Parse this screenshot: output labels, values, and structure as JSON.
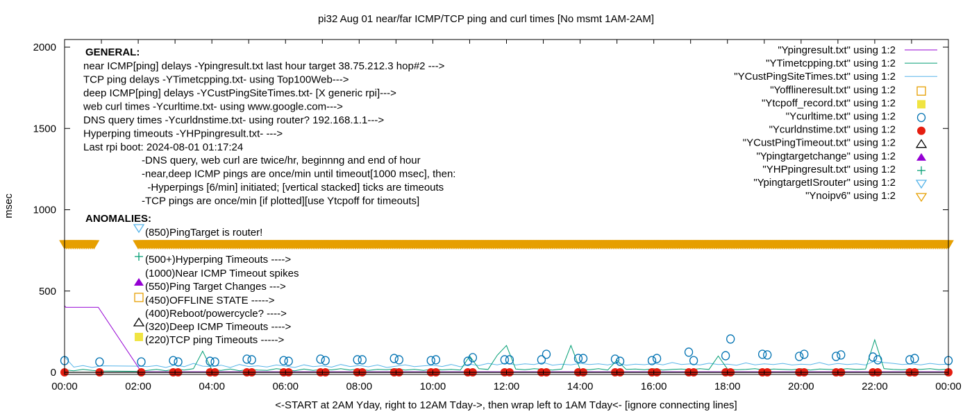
{
  "chart_data": {
    "type": "line",
    "title": "pi32 Aug 01  near/far ICMP/TCP ping and curl times [No msmt 1AM-2AM]",
    "xlabel": "<-START at 2AM Yday, right to 12AM Tday->, then wrap left to 1AM Tday<- [ignore connecting lines]",
    "ylabel": "msec",
    "xlim": [
      "00:00",
      "24:00"
    ],
    "ylim": [
      -13,
      2047
    ],
    "x_ticks": [
      "00:00",
      "02:00",
      "04:00",
      "06:00",
      "08:00",
      "10:00",
      "12:00",
      "14:00",
      "16:00",
      "18:00",
      "20:00",
      "22:00",
      "00:00"
    ],
    "y_ticks": [
      0,
      500,
      1000,
      1500,
      2000
    ],
    "grid": false,
    "legend_position": "top-right",
    "colors": {
      "ping": "#9400d3",
      "tcp": "#009e73",
      "cust": "#56b4e9",
      "offline": "#e69f00",
      "tcpoff": "#f0e442",
      "curl": "#0072b2",
      "dns": "#e51e10",
      "custtimeout": "#000000",
      "targetchange": "#9400d3",
      "hp": "#009e73",
      "isrouter": "#56b4e9",
      "noipv6": "#e69f00"
    },
    "legend": [
      {
        "label": "\"Ypingresult.txt\" using 1:2",
        "style": "line",
        "color": "#9400d3"
      },
      {
        "label": "\"YTimetcpping.txt\" using 1:2",
        "style": "line",
        "color": "#009e73"
      },
      {
        "label": "\"YCustPingSiteTimes.txt\" using 1:2",
        "style": "line",
        "color": "#56b4e9"
      },
      {
        "label": "\"Yofflineresult.txt\" using 1:2",
        "style": "open-square",
        "color": "#e69f00"
      },
      {
        "label": "\"Ytcpoff_record.txt\" using 1:2",
        "style": "filled-square",
        "color": "#f0e442"
      },
      {
        "label": "\"Ycurltime.txt\" using 1:2",
        "style": "open-circle",
        "color": "#0072b2"
      },
      {
        "label": "\"Ycurldnstime.txt\" using 1:2",
        "style": "filled-circle",
        "color": "#e51e10"
      },
      {
        "label": "\"YCustPingTimeout.txt\" using 1:2",
        "style": "open-triangle",
        "color": "#000000"
      },
      {
        "label": "\"Ypingtargetchange\" using 1:2",
        "style": "filled-triangle",
        "color": "#9400d3"
      },
      {
        "label": "\"YHPpingresult.txt\" using 1:2",
        "style": "plus",
        "color": "#009e73"
      },
      {
        "label": "\"YpingtargetISrouter\" using 1:2",
        "style": "open-down-triangle",
        "color": "#56b4e9"
      },
      {
        "label": "\"Ynoipv6\" using 1:2",
        "style": "open-down-triangle",
        "color": "#e69f00"
      }
    ],
    "general": {
      "heading": "GENERAL:",
      "lines": [
        "near ICMP[ping] delays -Ypingresult.txt last hour target 38.75.212.3 hop#2 --->",
        "TCP ping delays -YTimetcpping.txt- using Top100Web--->",
        "deep ICMP[ping] delays -YCustPingSiteTimes.txt- [X generic rpi]--->",
        "web curl times -Ycurltime.txt- using www.google.com--->",
        "DNS query times -Ycurldnstime.txt- using router? 192.168.1.1--->",
        "Hyperping timeouts -YHPpingresult.txt- --->",
        "Last rpi boot: 2024-08-01 01:17:24"
      ],
      "notes": [
        "-DNS query, web curl are twice/hr, beginnng and end of hour",
        "-near,deep ICMP pings are once/min until timeout[1000 msec], then:",
        "  -Hyperpings [6/min] initiated; [vertical stacked] ticks are timeouts",
        "-TCP pings are once/min [if plotted][use Ytcpoff for timeouts]"
      ]
    },
    "anomalies": {
      "heading": "ANOMALIES:",
      "items": [
        {
          "text": "(850)PingTarget is router!",
          "marker": "open-down-triangle",
          "color": "#56b4e9"
        },
        {
          "text": "(500+)Hyperping Timeouts ---->",
          "marker": "plus",
          "color": "#009e73"
        },
        {
          "text": "(1000)Near ICMP Timeout spikes",
          "marker": "none",
          "color": ""
        },
        {
          "text": "(550)Ping Target Changes --->",
          "marker": "filled-triangle",
          "color": "#9400d3"
        },
        {
          "text": "(450)OFFLINE STATE ----->",
          "marker": "open-square",
          "color": "#e69f00"
        },
        {
          "text": "(400)Reboot/powercycle? ---->",
          "marker": "none",
          "color": ""
        },
        {
          "text": "(320)Deep ICMP Timeouts ---->",
          "marker": "open-triangle",
          "color": "#000000"
        },
        {
          "text": "(220)TCP ping Timeouts ----->",
          "marker": "filled-square",
          "color": "#f0e442"
        }
      ]
    },
    "series": {
      "ping": {
        "x": [
          "00:00",
          "00:02",
          "00:55",
          "02:05",
          "24:00"
        ],
        "y": [
          410,
          400,
          400,
          3,
          3
        ]
      },
      "times": [
        "00:00",
        "00:15",
        "00:30",
        "00:45",
        "01:00",
        "01:15",
        "01:30",
        "01:45",
        "02:00",
        "02:15",
        "02:30",
        "02:45",
        "03:00",
        "03:15",
        "03:30",
        "03:45",
        "04:00",
        "04:15",
        "04:30",
        "04:45",
        "05:00",
        "05:15",
        "05:30",
        "05:45",
        "06:00",
        "06:15",
        "06:30",
        "06:45",
        "07:00",
        "07:15",
        "07:30",
        "07:45",
        "08:00",
        "08:15",
        "08:30",
        "08:45",
        "09:00",
        "09:15",
        "09:30",
        "09:45",
        "10:00",
        "10:15",
        "10:30",
        "10:45",
        "11:00",
        "11:15",
        "11:30",
        "11:45",
        "12:00",
        "12:15",
        "12:30",
        "12:45",
        "13:00",
        "13:15",
        "13:30",
        "13:45",
        "14:00",
        "14:15",
        "14:30",
        "14:45",
        "15:00",
        "15:15",
        "15:30",
        "15:45",
        "16:00",
        "16:15",
        "16:30",
        "16:45",
        "17:00",
        "17:15",
        "17:30",
        "17:45",
        "18:00",
        "18:15",
        "18:30",
        "18:45",
        "19:00",
        "19:15",
        "19:30",
        "19:45",
        "20:00",
        "20:15",
        "20:30",
        "20:45",
        "21:00",
        "21:15",
        "21:30",
        "21:45",
        "22:00",
        "22:15",
        "22:30",
        "22:45",
        "23:00",
        "23:15",
        "23:30",
        "23:45",
        "24:00"
      ],
      "cust": [
        95,
        32,
        42,
        30,
        40,
        null,
        null,
        null,
        38,
        35,
        42,
        30,
        45,
        35,
        55,
        38,
        35,
        44,
        30,
        48,
        36,
        40,
        33,
        45,
        38,
        30,
        46,
        35,
        40,
        32,
        48,
        36,
        42,
        34,
        45,
        30,
        38,
        46,
        35,
        40,
        44,
        36,
        48,
        34,
        50,
        42,
        55,
        46,
        58,
        45,
        52,
        48,
        60,
        44,
        50,
        46,
        55,
        48,
        52,
        45,
        58,
        44,
        50,
        47,
        55,
        46,
        60,
        48,
        52,
        45,
        56,
        48,
        50,
        44,
        58,
        46,
        52,
        48,
        55,
        45,
        50,
        47,
        60,
        46,
        54,
        48,
        52,
        45,
        70,
        60,
        55,
        48,
        52,
        46,
        55,
        48,
        50
      ],
      "tcp": [
        15,
        10,
        18,
        12,
        8,
        null,
        null,
        null,
        6,
        12,
        18,
        10,
        20,
        14,
        22,
        130,
        15,
        12,
        20,
        10,
        18,
        14,
        12,
        22,
        16,
        10,
        20,
        12,
        18,
        15,
        22,
        14,
        20,
        12,
        18,
        16,
        22,
        14,
        18,
        12,
        20,
        15,
        18,
        14,
        100,
        22,
        18,
        105,
        165,
        20,
        16,
        22,
        18,
        14,
        20,
        165,
        18,
        16,
        22,
        14,
        75,
        18,
        20,
        16,
        22,
        14,
        18,
        20,
        16,
        22,
        18,
        100,
        20,
        16,
        18,
        22,
        14,
        20,
        18,
        16,
        22,
        14,
        20,
        18,
        16,
        22,
        18,
        20,
        200,
        22,
        18,
        16,
        20,
        18,
        22,
        16,
        20
      ]
    },
    "curl": {
      "x": [
        "00:00",
        "00:57",
        "02:05",
        "02:57",
        "03:05",
        "03:57",
        "04:05",
        "04:57",
        "05:05",
        "05:57",
        "06:05",
        "06:57",
        "07:05",
        "07:57",
        "08:05",
        "08:57",
        "09:05",
        "09:57",
        "10:05",
        "10:57",
        "11:05",
        "11:57",
        "12:05",
        "12:57",
        "13:05",
        "13:57",
        "14:05",
        "14:57",
        "15:05",
        "15:57",
        "16:05",
        "16:57",
        "17:05",
        "17:57",
        "18:05",
        "18:57",
        "19:05",
        "19:57",
        "20:05",
        "20:57",
        "21:05",
        "21:57",
        "22:05",
        "22:57",
        "23:05",
        "24:00"
      ],
      "y": [
        72,
        64,
        64,
        72,
        64,
        68,
        64,
        81,
        77,
        72,
        68,
        81,
        72,
        77,
        77,
        85,
        77,
        72,
        77,
        68,
        90,
        77,
        77,
        77,
        111,
        85,
        85,
        81,
        68,
        72,
        85,
        124,
        72,
        102,
        205,
        111,
        107,
        98,
        111,
        98,
        107,
        94,
        77,
        77,
        85,
        72
      ]
    },
    "dns": {
      "x": [
        "00:00",
        "00:57",
        "02:05",
        "02:57",
        "03:05",
        "03:57",
        "04:05",
        "04:57",
        "05:05",
        "05:57",
        "06:05",
        "06:57",
        "07:05",
        "07:57",
        "08:05",
        "08:57",
        "09:05",
        "09:57",
        "10:05",
        "10:57",
        "11:05",
        "11:57",
        "12:05",
        "12:57",
        "13:05",
        "13:57",
        "14:05",
        "14:57",
        "15:05",
        "15:57",
        "16:05",
        "16:57",
        "17:05",
        "17:57",
        "18:05",
        "18:57",
        "19:05",
        "19:57",
        "20:05",
        "20:57",
        "21:05",
        "21:57",
        "22:05",
        "22:57",
        "23:05",
        "24:00"
      ],
      "value": 0
    },
    "noipv6": {
      "value": 785,
      "ranges": [
        [
          "00:00",
          "00:50"
        ],
        [
          "02:00",
          "24:00"
        ]
      ]
    }
  }
}
